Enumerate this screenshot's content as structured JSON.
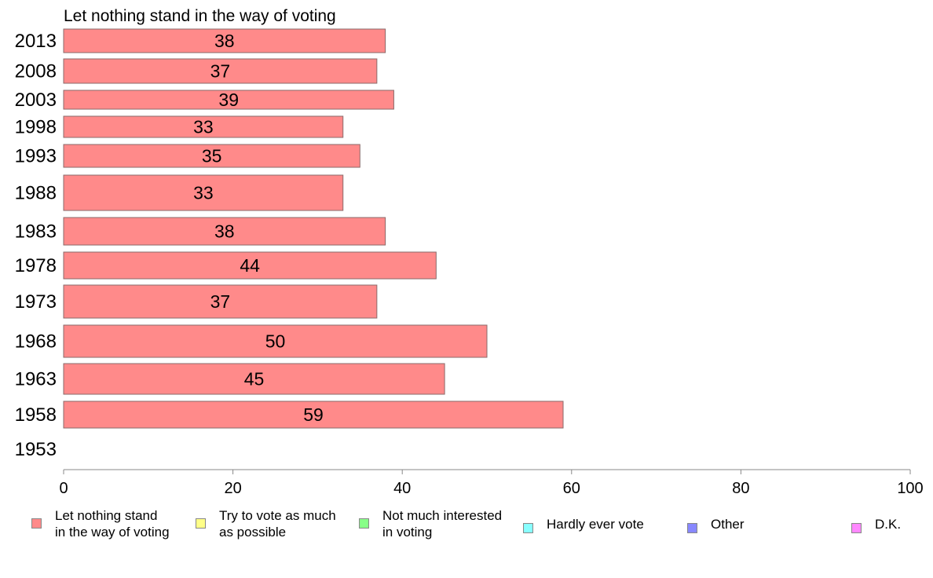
{
  "chart_data": {
    "type": "bar",
    "orientation": "horizontal",
    "title": "Let nothing stand in the way of voting",
    "categories": [
      "2013",
      "2008",
      "2003",
      "1998",
      "1993",
      "1988",
      "1983",
      "1978",
      "1973",
      "1968",
      "1963",
      "1958",
      "1953"
    ],
    "series": [
      {
        "name": "Let nothing stand in the way of voting",
        "values": [
          38,
          37,
          39,
          33,
          35,
          33,
          38,
          44,
          37,
          50,
          45,
          59,
          null
        ]
      }
    ],
    "xlim": [
      0,
      100
    ],
    "xticks": [
      0,
      20,
      40,
      60,
      80,
      100
    ],
    "grid": false,
    "legend_position": "bottom"
  },
  "legend": {
    "items": [
      {
        "label": "Let nothing stand\nin the way of voting",
        "color": "#ff8a8a"
      },
      {
        "label": "Try to vote as much\nas possible",
        "color": "#ffff88"
      },
      {
        "label": "Not much interested\nin voting",
        "color": "#88ff88"
      },
      {
        "label": "Hardly ever vote",
        "color": "#88ffff"
      },
      {
        "label": "Other",
        "color": "#8888ff"
      },
      {
        "label": "D.K.",
        "color": "#ff88ff"
      }
    ]
  },
  "colors": {
    "bar": "#ff8a8a",
    "bar_border": "#8a6a6a",
    "axis": "#888888"
  }
}
